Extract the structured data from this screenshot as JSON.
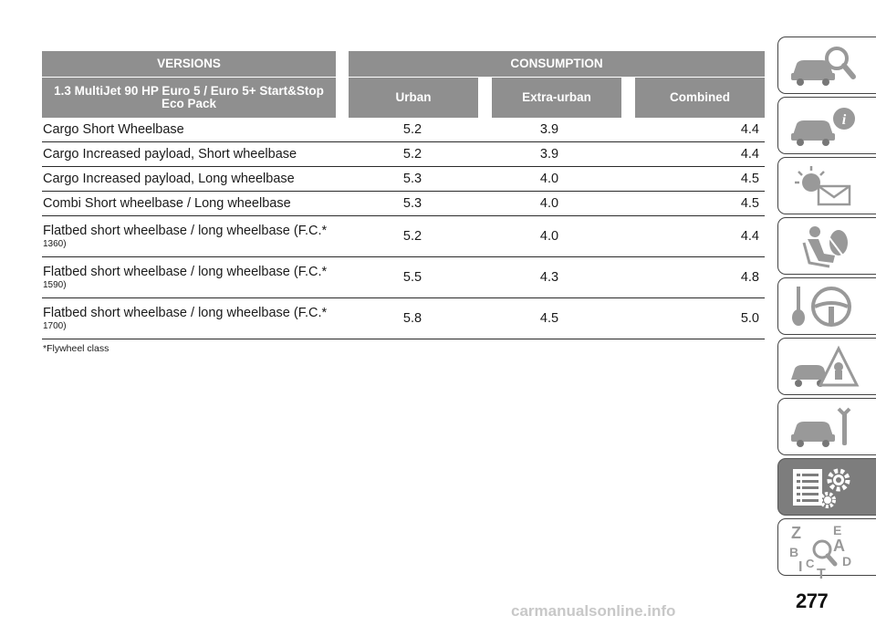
{
  "table": {
    "header": {
      "versions": "VERSIONS",
      "consumption": "CONSUMPTION",
      "engine": "1.3 MultiJet 90 HP Euro 5 / Euro 5+ Start&Stop Eco Pack",
      "urban": "Urban",
      "extra_urban": "Extra-urban",
      "combined": "Combined"
    },
    "rows": [
      {
        "name": "Cargo Short Wheelbase",
        "sub": "",
        "urban": "5.2",
        "extra": "3.9",
        "combined": "4.4"
      },
      {
        "name": "Cargo Increased payload, Short wheelbase",
        "sub": "",
        "urban": "5.2",
        "extra": "3.9",
        "combined": "4.4"
      },
      {
        "name": "Cargo Increased payload, Long wheelbase",
        "sub": "",
        "urban": "5.3",
        "extra": "4.0",
        "combined": "4.5"
      },
      {
        "name": "Combi Short wheelbase / Long wheelbase",
        "sub": "",
        "urban": "5.3",
        "extra": "4.0",
        "combined": "4.5"
      },
      {
        "name": "Flatbed short wheelbase / long wheelbase (F.C.*",
        "sub": "1360)",
        "urban": "5.2",
        "extra": "4.0",
        "combined": "4.4"
      },
      {
        "name": "Flatbed short wheelbase / long wheelbase (F.C.*",
        "sub": "1590)",
        "urban": "5.5",
        "extra": "4.3",
        "combined": "4.8"
      },
      {
        "name": "Flatbed short wheelbase / long wheelbase (F.C.*",
        "sub": "1700)",
        "urban": "5.8",
        "extra": "4.5",
        "combined": "5.0"
      }
    ],
    "footnote": "*Flywheel class"
  },
  "side_tabs": [
    {
      "icon": "car-search-icon",
      "active": false
    },
    {
      "icon": "car-info-icon",
      "active": false
    },
    {
      "icon": "warning-light-message-icon",
      "active": false
    },
    {
      "icon": "seat-airbag-icon",
      "active": false
    },
    {
      "icon": "key-steering-wheel-icon",
      "active": false
    },
    {
      "icon": "car-breakdown-warning-icon",
      "active": false
    },
    {
      "icon": "car-maintenance-icon",
      "active": false
    },
    {
      "icon": "technical-data-icon",
      "active": true
    },
    {
      "icon": "alphabetical-index-icon",
      "active": false
    }
  ],
  "index_letters": {
    "z": "Z",
    "e": "E",
    "b": "B",
    "a": "A",
    "i": "I",
    "c": "C",
    "d": "D",
    "t": "T"
  },
  "page_number": "277",
  "watermark": "carmanualsonline.info"
}
